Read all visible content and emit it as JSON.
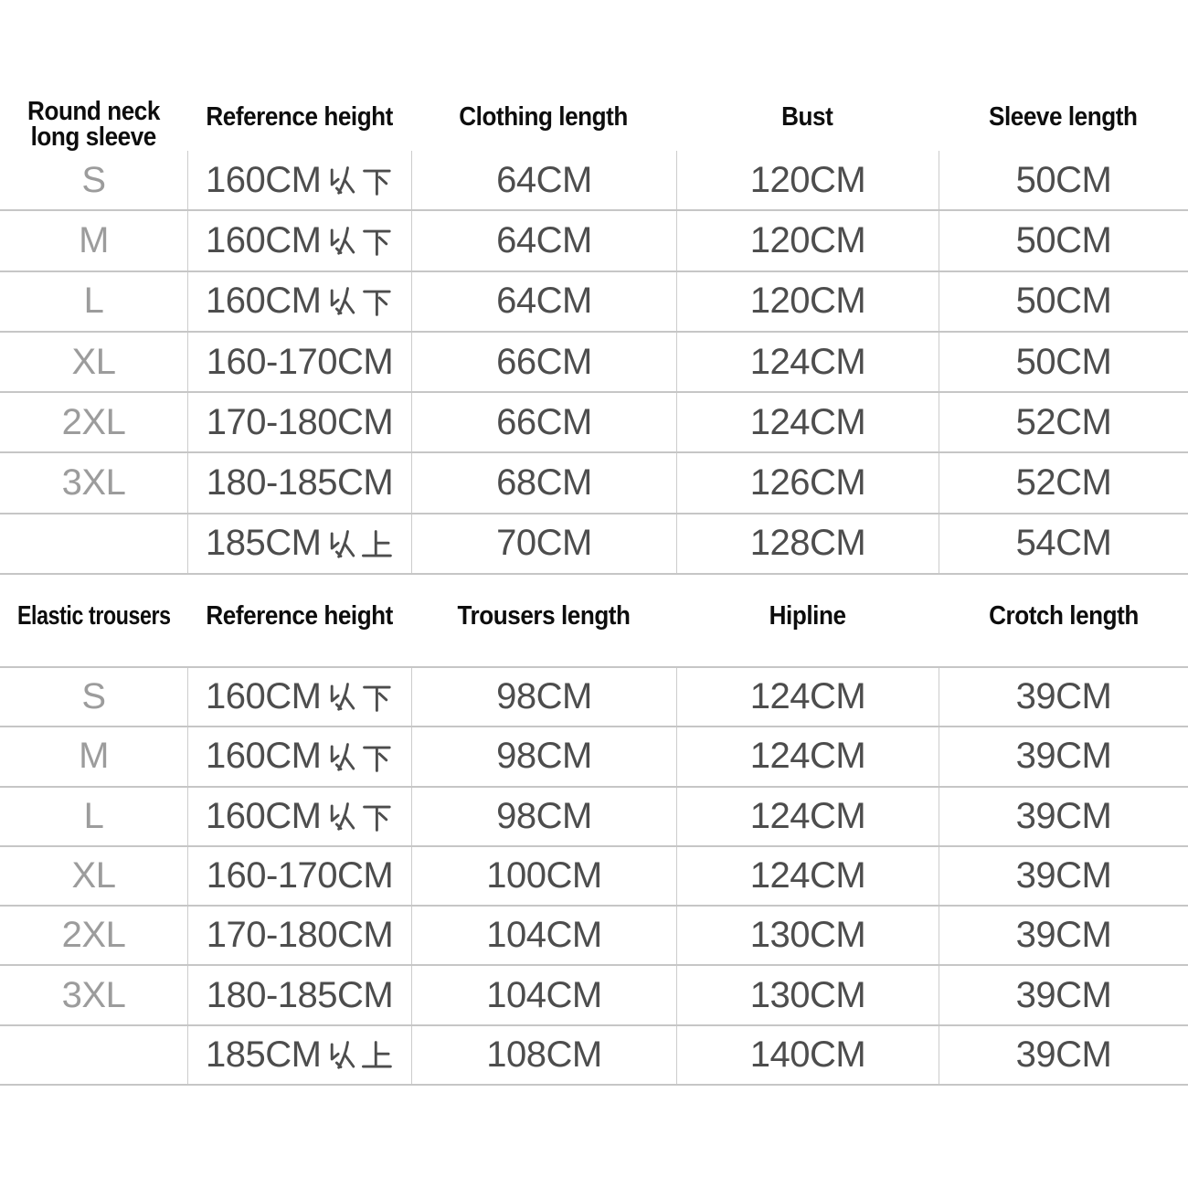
{
  "colors": {
    "background": "#ffffff",
    "header_text": "#0d0d0d",
    "size_text": "#9c9c9c",
    "value_text": "#4d4d4d",
    "grid_line_horizontal": "#c6c6c6",
    "grid_line_vertical": "#cccccc"
  },
  "shirt": {
    "title_lines": [
      "Round neck",
      "long sleeve"
    ],
    "columns": [
      "Reference height",
      "Clothing length",
      "Bust",
      "Sleeve length"
    ],
    "rows": [
      [
        "S",
        "160CM以下",
        "64CM",
        "120CM",
        "50CM"
      ],
      [
        "M",
        "160CM以下",
        "64CM",
        "120CM",
        "50CM"
      ],
      [
        "L",
        "160CM以下",
        "64CM",
        "120CM",
        "50CM"
      ],
      [
        "XL",
        "160-170CM",
        "66CM",
        "124CM",
        "50CM"
      ],
      [
        "2XL",
        "170-180CM",
        "66CM",
        "124CM",
        "52CM"
      ],
      [
        "3XL",
        "180-185CM",
        "68CM",
        "126CM",
        "52CM"
      ],
      [
        "",
        "185CM以上",
        "70CM",
        "128CM",
        "54CM"
      ]
    ]
  },
  "trousers": {
    "title": "Elastic trousers",
    "columns": [
      "Reference height",
      "Trousers length",
      "Hipline",
      "Crotch length"
    ],
    "rows": [
      [
        "S",
        "160CM以下",
        "98CM",
        "124CM",
        "39CM"
      ],
      [
        "M",
        "160CM以下",
        "98CM",
        "124CM",
        "39CM"
      ],
      [
        "L",
        "160CM以下",
        "98CM",
        "124CM",
        "39CM"
      ],
      [
        "XL",
        "160-170CM",
        "100CM",
        "124CM",
        "39CM"
      ],
      [
        "2XL",
        "170-180CM",
        "104CM",
        "130CM",
        "39CM"
      ],
      [
        "3XL",
        "180-185CM",
        "104CM",
        "130CM",
        "39CM"
      ],
      [
        "",
        "185CM以上",
        "108CM",
        "140CM",
        "39CM"
      ]
    ]
  }
}
